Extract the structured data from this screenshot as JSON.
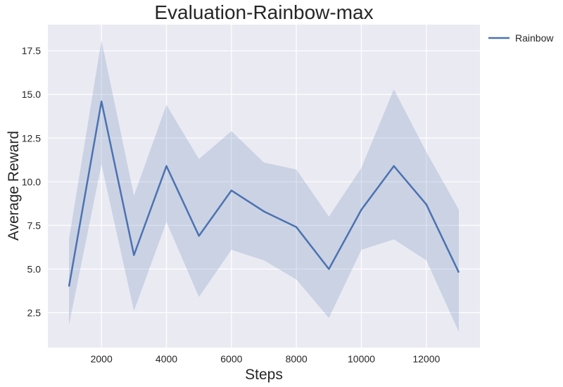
{
  "chart_data": {
    "type": "line",
    "title": "Evaluation-Rainbow-max",
    "xlabel": "Steps",
    "ylabel": "Average Reward",
    "xlim": [
      350,
      13650
    ],
    "ylim": [
      0.5,
      19.0
    ],
    "xticks": [
      2000,
      4000,
      6000,
      8000,
      10000,
      12000
    ],
    "xtick_labels": [
      "2000",
      "4000",
      "6000",
      "8000",
      "10000",
      "12000"
    ],
    "yticks": [
      2.5,
      5.0,
      7.5,
      10.0,
      12.5,
      15.0,
      17.5
    ],
    "ytick_labels": [
      "2.5",
      "5.0",
      "7.5",
      "10.0",
      "12.5",
      "15.0",
      "17.5"
    ],
    "grid": true,
    "legend_position": "outside-top-right",
    "colors": {
      "line": "#4c72b0",
      "band": "#4c72b0",
      "plot_bg": "#eaeaf2",
      "grid": "#ffffff"
    },
    "series": [
      {
        "name": "Rainbow",
        "x": [
          1000,
          2000,
          3000,
          4000,
          5000,
          6000,
          7000,
          8000,
          9000,
          10000,
          11000,
          12000,
          13000
        ],
        "y": [
          4.0,
          14.6,
          5.8,
          10.9,
          6.9,
          9.5,
          8.3,
          7.4,
          5.0,
          8.4,
          10.9,
          8.7,
          4.8
        ],
        "upper": [
          6.7,
          18.1,
          9.2,
          14.4,
          11.3,
          12.9,
          11.1,
          10.7,
          8.0,
          10.8,
          15.3,
          11.7,
          8.4
        ],
        "lower": [
          1.8,
          11.0,
          2.6,
          7.7,
          3.4,
          6.1,
          5.5,
          4.4,
          2.2,
          6.1,
          6.7,
          5.5,
          1.4
        ]
      }
    ]
  }
}
